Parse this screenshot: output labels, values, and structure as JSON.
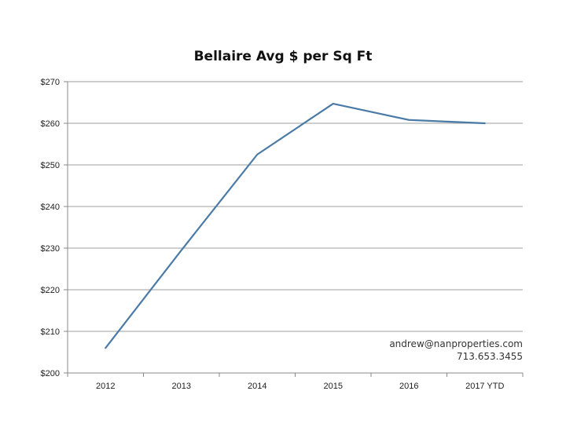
{
  "chart_data": {
    "type": "line",
    "title": "Bellaire Avg $ per Sq Ft",
    "xlabel": "",
    "ylabel": "",
    "categories": [
      "2012",
      "2013",
      "2014",
      "2015",
      "2016",
      "2017 YTD"
    ],
    "series": [
      {
        "values": [
          206,
          229.5,
          252.5,
          264.7,
          260.8,
          260
        ],
        "color": "#4a7ba7"
      }
    ],
    "ylim": [
      200,
      270
    ],
    "y_ticks": [
      200,
      210,
      220,
      230,
      240,
      250,
      260,
      270
    ],
    "y_tick_labels": [
      "$200",
      "$210",
      "$220",
      "$230",
      "$240",
      "$250",
      "$260",
      "$270"
    ],
    "grid": true,
    "legend": "none"
  },
  "annotation": {
    "email": "andrew@nanproperties.com",
    "phone": "713.653.3455"
  }
}
